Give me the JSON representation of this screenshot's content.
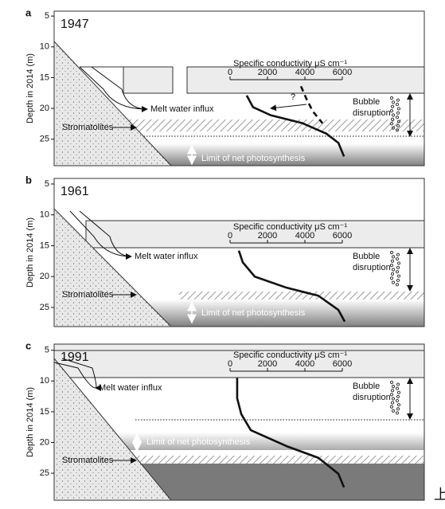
{
  "chart_data": [
    {
      "type": "line",
      "panel_label": "a",
      "title": "1947",
      "y_label": "Depth in 2014 (m)",
      "x_label": "Specific conductivity μS cm⁻¹",
      "ylim": [
        4.2,
        29.3
      ],
      "yticks": [
        5,
        10,
        15,
        20,
        25
      ],
      "xlim": [
        0,
        6000
      ],
      "xticks": [
        0,
        2000,
        4000,
        6000
      ],
      "annotations": {
        "melt": "Melt water influx",
        "stromatolites": "Stromatolites",
        "photosynthesis": "Limit of net photosynthesis",
        "bubble": [
          "Bubble",
          "disruption"
        ],
        "question": "?"
      },
      "series": [
        {
          "color": "#111111",
          "dash": false,
          "x": [
            890,
            1230,
            2170,
            3870,
            5150,
            5790,
            6090
          ],
          "y": [
            17.9,
            19.8,
            21.1,
            22.4,
            24.1,
            25.6,
            27.8
          ]
        },
        {
          "color": "#111111",
          "dash": true,
          "x": [
            3790,
            4090,
            4430,
            4940
          ],
          "y": [
            16.4,
            18.5,
            20.5,
            22.4
          ]
        }
      ]
    },
    {
      "type": "line",
      "panel_label": "b",
      "title": "1961",
      "y_label": "Depth in 2014 (m)",
      "x_label": "Specific conductivity μS cm⁻¹",
      "ylim": [
        4.1,
        28.1
      ],
      "yticks": [
        5,
        10,
        15,
        20,
        25
      ],
      "xlim": [
        0,
        6000
      ],
      "xticks": [
        0,
        2000,
        4000,
        6000
      ],
      "annotations": {
        "melt": "Melt water influx",
        "stromatolites": "Stromatolites",
        "photosynthesis": "Limit of net photosynthesis",
        "bubble": [
          "Bubble",
          "disruption"
        ]
      },
      "series": [
        {
          "color": "#111111",
          "dash": false,
          "x": [
            470,
            680,
            1320,
            3020,
            4720,
            5790,
            6130
          ],
          "y": [
            15.8,
            17.7,
            20.0,
            21.8,
            23.1,
            25.4,
            27.3
          ]
        }
      ]
    },
    {
      "type": "line",
      "panel_label": "c",
      "title": "1991",
      "y_label": "Depth in 2014 (m)",
      "x_label": "Specific conductivity μS cm⁻¹",
      "ylim": [
        4.0,
        29.4
      ],
      "yticks": [
        5,
        10,
        15,
        20,
        25
      ],
      "xlim": [
        0,
        6000
      ],
      "xticks": [
        0,
        2000,
        4000,
        6000
      ],
      "annotations": {
        "melt": "Melt water influx",
        "stromatolites": "Stromatolites",
        "photosynthesis": "Limit of net photosynthesis",
        "bubble": [
          "Bubble",
          "disruption"
        ]
      },
      "series": [
        {
          "color": "#111111",
          "dash": false,
          "x": [
            380,
            380,
            600,
            1110,
            3020,
            4720,
            5790,
            6090
          ],
          "y": [
            9.5,
            12.8,
            15.4,
            18.0,
            20.6,
            22.5,
            25.1,
            27.3
          ]
        }
      ]
    }
  ],
  "watermark": "上海"
}
